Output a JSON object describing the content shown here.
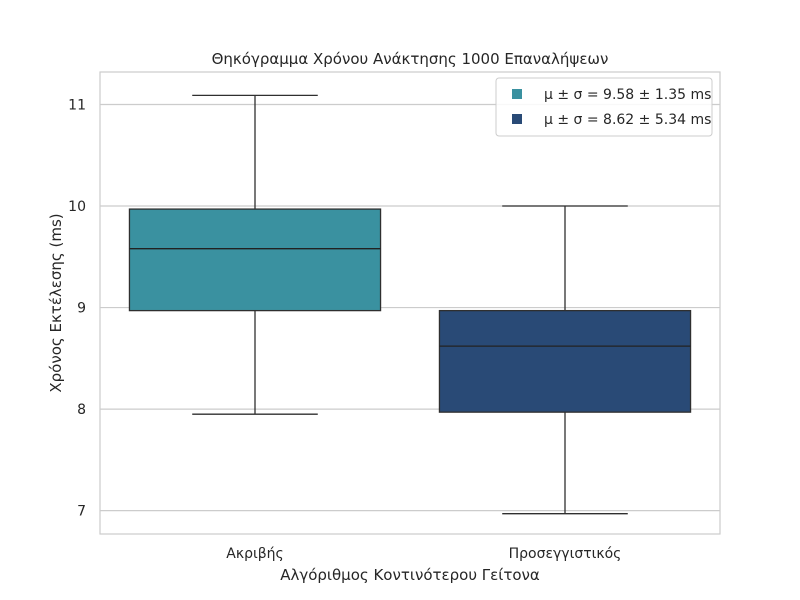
{
  "chart_data": {
    "type": "box",
    "title": "Θηκόγραμμα Χρόνου Ανάκτησης 1000 Επαναλήψεων",
    "xlabel": "Αλγόριθμος Κοντινότερου Γείτονα",
    "ylabel": "Χρόνος Εκτέλεσης (ms)",
    "ylim": [
      6.77,
      11.32
    ],
    "yticks": [
      7,
      8,
      9,
      10,
      11
    ],
    "grid": true,
    "legend_position": "top-right",
    "categories": [
      "Ακριβής",
      "Προσεγγιστικός"
    ],
    "series": [
      {
        "category": "Ακριβής",
        "whisker_low": 7.95,
        "q1": 8.97,
        "median": 9.58,
        "q3": 9.97,
        "whisker_high": 11.09,
        "color": "#3a91a0",
        "legend": "μ ± σ = 9.58 ± 1.35 ms"
      },
      {
        "category": "Προσεγγιστικός",
        "whisker_low": 6.97,
        "q1": 7.97,
        "median": 8.62,
        "q3": 8.97,
        "whisker_high": 10.0,
        "color": "#294a76",
        "legend": "μ ± σ = 8.62 ± 5.34 ms"
      }
    ]
  }
}
